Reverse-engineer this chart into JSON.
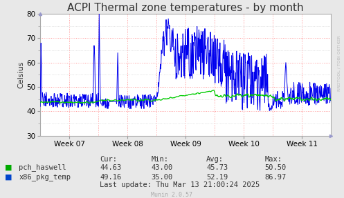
{
  "title": "ACPI Thermal zone temperatures - by month",
  "ylabel": "Celsius",
  "background_color": "#e8e8e8",
  "plot_bg_color": "#ffffff",
  "grid_color_major": "#ff9999",
  "ylim": [
    30,
    80
  ],
  "yticks": [
    30,
    40,
    50,
    60,
    70,
    80
  ],
  "week_labels": [
    "Week 07",
    "Week 08",
    "Week 09",
    "Week 10",
    "Week 11"
  ],
  "green_color": "#00cc00",
  "blue_color": "#0000ee",
  "title_fontsize": 11,
  "label_fontsize": 8,
  "tick_fontsize": 7.5,
  "legend_labels": [
    "pch_haswell",
    "x86_pkg_temp"
  ],
  "legend_colors": [
    "#00aa00",
    "#0044cc"
  ],
  "table_headers": [
    "Cur:",
    "Min:",
    "Avg:",
    "Max:"
  ],
  "table_pch": [
    "44.63",
    "43.00",
    "45.73",
    "50.50"
  ],
  "table_x86": [
    "49.16",
    "35.00",
    "52.19",
    "86.97"
  ],
  "last_update": "Last update: Thu Mar 13 21:00:24 2025",
  "munin_version": "Munin 2.0.57",
  "watermark": "RRDTOOL / TOBI OETIKER"
}
